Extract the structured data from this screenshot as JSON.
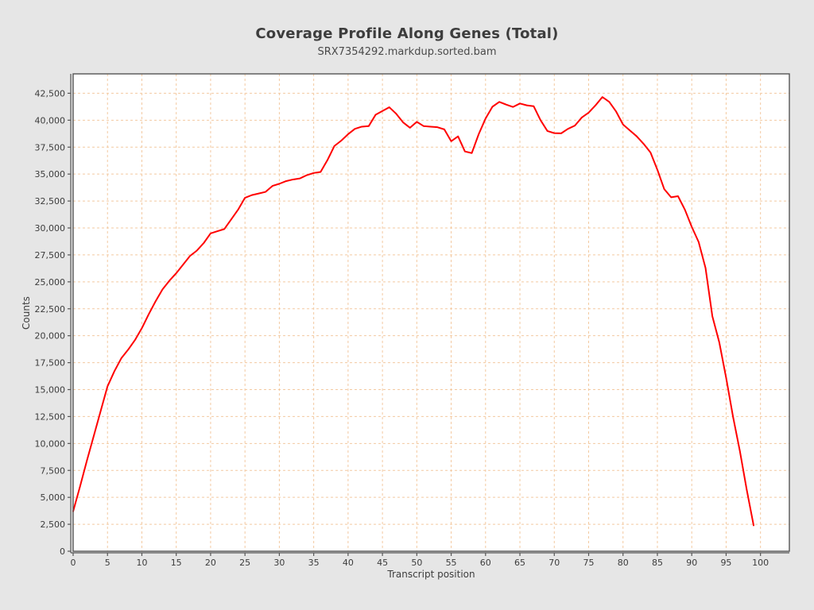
{
  "chart_data": {
    "type": "line",
    "title": "Coverage Profile Along Genes (Total)",
    "subtitle": "SRX7354292.markdup.sorted.bam",
    "xlabel": "Transcript position",
    "ylabel": "Counts",
    "xlim": [
      0,
      104.2
    ],
    "ylim": [
      0,
      44300
    ],
    "x_ticks": [
      0,
      5,
      10,
      15,
      20,
      25,
      30,
      35,
      40,
      45,
      50,
      55,
      60,
      65,
      70,
      75,
      80,
      85,
      90,
      95,
      100
    ],
    "y_ticks": [
      0,
      2500,
      5000,
      7500,
      10000,
      12500,
      15000,
      17500,
      20000,
      22500,
      25000,
      27500,
      30000,
      32500,
      35000,
      37500,
      40000,
      42500
    ],
    "y_tick_labels": [
      "0",
      "2,500",
      "5,000",
      "7,500",
      "10,000",
      "12,500",
      "15,000",
      "17,500",
      "20,000",
      "22,500",
      "25,000",
      "27,500",
      "30,000",
      "32,500",
      "35,000",
      "37,500",
      "40,000",
      "42,500"
    ],
    "grid": {
      "on": true,
      "color": "#f3c9a0",
      "dash": "3,3",
      "legend": "none"
    },
    "series": [
      {
        "name": "SRX7354292.markdup.sorted.bam",
        "color": "#ff0000",
        "x_start": 0,
        "x_step": 1,
        "values": [
          3700,
          6000,
          8400,
          10700,
          13000,
          15300,
          16700,
          17900,
          18700,
          19600,
          20700,
          22000,
          23200,
          24300,
          25100,
          25800,
          26600,
          27400,
          27900,
          28600,
          29500,
          29700,
          29900,
          30800,
          31700,
          32800,
          33050,
          33200,
          33350,
          33900,
          34100,
          34350,
          34500,
          34600,
          34900,
          35100,
          35200,
          36300,
          37600,
          38100,
          38700,
          39200,
          39400,
          39450,
          40500,
          40850,
          41200,
          40600,
          39800,
          39300,
          39850,
          39450,
          39400,
          39350,
          39150,
          38050,
          38500,
          37100,
          36950,
          38700,
          40150,
          41250,
          41700,
          41450,
          41230,
          41550,
          41380,
          41300,
          40000,
          39000,
          38800,
          38780,
          39200,
          39500,
          40250,
          40700,
          41380,
          42150,
          41700,
          40800,
          39600,
          39050,
          38500,
          37800,
          37000,
          35400,
          33600,
          32850,
          32950,
          31700,
          30100,
          28700,
          26300,
          21800,
          19400,
          16100,
          12500,
          9300,
          5700,
          2400
        ]
      }
    ],
    "colors": {
      "background": "#e6e6e6",
      "plot_background": "#ffffff",
      "axis": "#555555",
      "tick_text": "#3c3c3c"
    }
  }
}
